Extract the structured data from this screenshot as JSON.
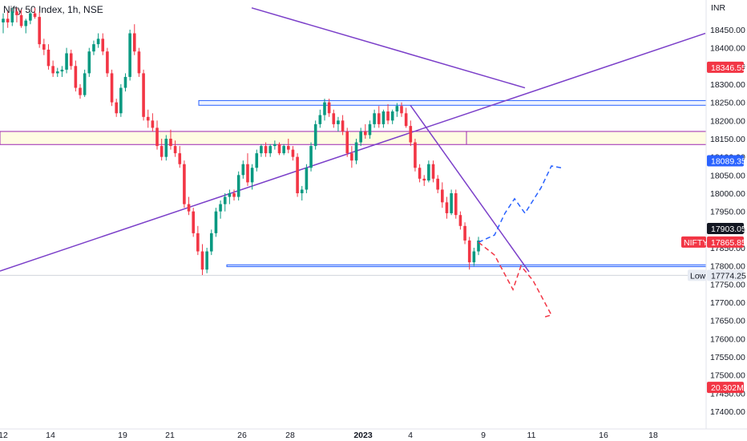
{
  "chart_data": {
    "type": "candlestick",
    "title": "Nifty 50 Index, 1h, NSE",
    "currency": "INR",
    "ylim": [
      17375,
      18510
    ],
    "y_ticks": [
      17400,
      17450,
      17500,
      17550,
      17600,
      17650,
      17700,
      17750,
      17800,
      17850,
      17900,
      17950,
      18000,
      18050,
      18100,
      18150,
      18200,
      18250,
      18300,
      18350,
      18400,
      18450
    ],
    "y_tick_labels": [
      "17400.00",
      "17450.00",
      "17500.00",
      "17550.00",
      "17600.00",
      "17650.00",
      "17700.00",
      "17750.00",
      "17800.00",
      "17850.00",
      "17900.00",
      "17950.00",
      "18000.00",
      "18050.00",
      "18100.00",
      "18150.00",
      "18200.00",
      "18250.00",
      "18300.00",
      "18350.00",
      "18400.00",
      "18450.00"
    ],
    "x_labels": [
      "12",
      "14",
      "19",
      "21",
      "26",
      "28",
      "2023",
      "4",
      "9",
      "11",
      "16",
      "18"
    ],
    "badges": [
      {
        "label": "",
        "value": "18346.55",
        "price": 18346.55,
        "color": "#f23645"
      },
      {
        "label": "",
        "value": "18089.35",
        "price": 18089.35,
        "color": "#2962ff"
      },
      {
        "label": "",
        "value": "17903.05",
        "price": 17903.05,
        "color": "#131722"
      },
      {
        "label": "NIFTY",
        "value": "17865.85",
        "price": 17865.85,
        "color": "#f23645"
      },
      {
        "label": "Low",
        "value": "17774.25",
        "price": 17774.25,
        "color": "#e7ebf3"
      },
      {
        "label": "",
        "value": "20.302M",
        "price": 17466,
        "color": "#f23645"
      }
    ],
    "candles": [
      [
        18470,
        18495,
        18440,
        18480
      ],
      [
        18480,
        18500,
        18455,
        18470
      ],
      [
        18470,
        18510,
        18460,
        18500
      ],
      [
        18500,
        18510,
        18470,
        18490
      ],
      [
        18490,
        18505,
        18455,
        18460
      ],
      [
        18460,
        18480,
        18440,
        18475
      ],
      [
        18475,
        18500,
        18465,
        18495
      ],
      [
        18495,
        18510,
        18480,
        18485
      ],
      [
        18485,
        18500,
        18400,
        18410
      ],
      [
        18410,
        18425,
        18380,
        18395
      ],
      [
        18395,
        18410,
        18340,
        18350
      ],
      [
        18350,
        18365,
        18320,
        18330
      ],
      [
        18330,
        18345,
        18320,
        18335
      ],
      [
        18335,
        18350,
        18320,
        18340
      ],
      [
        18340,
        18400,
        18330,
        18385
      ],
      [
        18385,
        18395,
        18340,
        18350
      ],
      [
        18350,
        18365,
        18280,
        18290
      ],
      [
        18290,
        18300,
        18260,
        18270
      ],
      [
        18270,
        18340,
        18265,
        18330
      ],
      [
        18330,
        18400,
        18320,
        18390
      ],
      [
        18390,
        18420,
        18380,
        18410
      ],
      [
        18410,
        18440,
        18400,
        18425
      ],
      [
        18425,
        18440,
        18380,
        18390
      ],
      [
        18390,
        18400,
        18320,
        18330
      ],
      [
        18330,
        18340,
        18240,
        18250
      ],
      [
        18250,
        18260,
        18210,
        18220
      ],
      [
        18220,
        18300,
        18210,
        18290
      ],
      [
        18290,
        18330,
        18280,
        18320
      ],
      [
        18320,
        18450,
        18310,
        18440
      ],
      [
        18440,
        18465,
        18380,
        18390
      ],
      [
        18390,
        18400,
        18320,
        18330
      ],
      [
        18330,
        18340,
        18200,
        18210
      ],
      [
        18210,
        18230,
        18180,
        18200
      ],
      [
        18200,
        18220,
        18170,
        18180
      ],
      [
        18180,
        18200,
        18120,
        18130
      ],
      [
        18130,
        18150,
        18090,
        18100
      ],
      [
        18100,
        18160,
        18090,
        18150
      ],
      [
        18150,
        18175,
        18120,
        18130
      ],
      [
        18130,
        18145,
        18100,
        18110
      ],
      [
        18110,
        18130,
        18070,
        18080
      ],
      [
        18080,
        18090,
        17960,
        17970
      ],
      [
        17970,
        17990,
        17940,
        17950
      ],
      [
        17950,
        17960,
        17880,
        17890
      ],
      [
        17890,
        17910,
        17830,
        17840
      ],
      [
        17840,
        17860,
        17775,
        17790
      ],
      [
        17790,
        17850,
        17780,
        17840
      ],
      [
        17840,
        17900,
        17830,
        17890
      ],
      [
        17890,
        17960,
        17880,
        17950
      ],
      [
        17950,
        17980,
        17930,
        17970
      ],
      [
        17970,
        18000,
        17950,
        17990
      ],
      [
        17990,
        18010,
        17970,
        18000
      ],
      [
        18000,
        18010,
        17980,
        17990
      ],
      [
        17990,
        18060,
        17980,
        18050
      ],
      [
        18050,
        18090,
        18040,
        18080
      ],
      [
        18080,
        18110,
        18020,
        18030
      ],
      [
        18030,
        18080,
        18010,
        18070
      ],
      [
        18070,
        18120,
        18060,
        18110
      ],
      [
        18110,
        18135,
        18100,
        18130
      ],
      [
        18130,
        18140,
        18100,
        18110
      ],
      [
        18110,
        18135,
        18100,
        18130
      ],
      [
        18130,
        18145,
        18120,
        18135
      ],
      [
        18135,
        18140,
        18105,
        18110
      ],
      [
        18110,
        18135,
        18105,
        18130
      ],
      [
        18130,
        18150,
        18110,
        18120
      ],
      [
        18120,
        18130,
        18090,
        18100
      ],
      [
        18100,
        18110,
        17990,
        18000
      ],
      [
        18000,
        18020,
        17980,
        18010
      ],
      [
        18010,
        18080,
        18000,
        18070
      ],
      [
        18070,
        18140,
        18060,
        18130
      ],
      [
        18130,
        18200,
        18120,
        18190
      ],
      [
        18190,
        18230,
        18180,
        18215
      ],
      [
        18215,
        18260,
        18200,
        18250
      ],
      [
        18250,
        18260,
        18210,
        18220
      ],
      [
        18220,
        18230,
        18180,
        18190
      ],
      [
        18190,
        18210,
        18170,
        18200
      ],
      [
        18200,
        18215,
        18160,
        18170
      ],
      [
        18170,
        18180,
        18100,
        18110
      ],
      [
        18110,
        18130,
        18070,
        18090
      ],
      [
        18090,
        18150,
        18080,
        18140
      ],
      [
        18140,
        18180,
        18130,
        18170
      ],
      [
        18170,
        18190,
        18150,
        18160
      ],
      [
        18160,
        18200,
        18150,
        18190
      ],
      [
        18190,
        18230,
        18180,
        18220
      ],
      [
        18220,
        18240,
        18180,
        18190
      ],
      [
        18190,
        18230,
        18180,
        18225
      ],
      [
        18225,
        18245,
        18190,
        18200
      ],
      [
        18200,
        18230,
        18190,
        18225
      ],
      [
        18225,
        18248,
        18210,
        18240
      ],
      [
        18240,
        18250,
        18210,
        18220
      ],
      [
        18220,
        18235,
        18180,
        18185
      ],
      [
        18185,
        18200,
        18130,
        18140
      ],
      [
        18140,
        18150,
        18060,
        18070
      ],
      [
        18070,
        18080,
        18030,
        18040
      ],
      [
        18040,
        18050,
        18020,
        18035
      ],
      [
        18035,
        18090,
        18030,
        18080
      ],
      [
        18080,
        18090,
        18030,
        18040
      ],
      [
        18040,
        18050,
        18000,
        18010
      ],
      [
        18010,
        18030,
        17960,
        17975
      ],
      [
        17975,
        17990,
        17930,
        17945
      ],
      [
        17945,
        18010,
        17940,
        18000
      ],
      [
        18000,
        18010,
        17930,
        17940
      ],
      [
        17940,
        17950,
        17900,
        17910
      ],
      [
        17910,
        17920,
        17860,
        17870
      ],
      [
        17870,
        17880,
        17790,
        17810
      ],
      [
        17810,
        17850,
        17800,
        17840
      ],
      [
        17840,
        17880,
        17830,
        17870
      ]
    ],
    "zones": [
      {
        "from": 18242,
        "to": 18255,
        "color": "#2962ff",
        "fill": "rgba(41,98,255,0.08)"
      },
      {
        "from": 18134,
        "to": 18170,
        "color": "#9c27b0",
        "fill": "rgba(255,235,59,0.15)"
      },
      {
        "from": 17798,
        "to": 17803,
        "color": "#2962ff",
        "fill": "rgba(41,98,255,0.15)"
      }
    ],
    "zone_x_start": [
      248,
      0,
      283
    ],
    "trendlines": [
      {
        "x1": 314,
        "p1": 18510,
        "x2": 655,
        "p2": 18290,
        "color": "#7b3fc9"
      },
      {
        "x1": 0,
        "p1": 17786,
        "x2": 880,
        "p2": 18440,
        "color": "#7b3fc9"
      },
      {
        "x1": 512,
        "p1": 18242,
        "x2": 660,
        "p2": 17784,
        "color": "#7b3fc9"
      }
    ],
    "projection_up": [
      [
        597,
        17865
      ],
      [
        617,
        17885
      ],
      [
        630,
        17945
      ],
      [
        642,
        17985
      ],
      [
        655,
        17945
      ],
      [
        675,
        18015
      ],
      [
        688,
        18075
      ],
      [
        700,
        18070
      ]
    ],
    "projection_down": [
      [
        597,
        17865
      ],
      [
        617,
        17830
      ],
      [
        640,
        17735
      ],
      [
        650,
        17800
      ],
      [
        665,
        17760
      ],
      [
        688,
        17665
      ],
      [
        680,
        17660
      ]
    ]
  }
}
